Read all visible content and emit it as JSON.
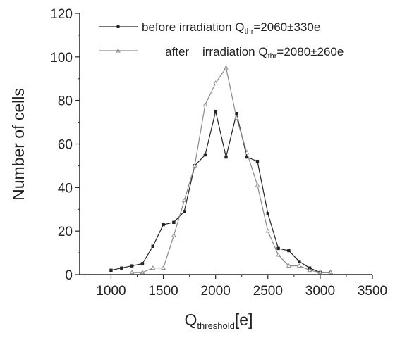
{
  "chart_data": {
    "type": "line",
    "title": "",
    "xlabel": {
      "main": "Q",
      "sub": "threshold",
      "unit": "[e]"
    },
    "ylabel": "Number of cells",
    "xlim": [
      700,
      3500
    ],
    "ylim": [
      0,
      120
    ],
    "xticks": [
      1000,
      1500,
      2000,
      2500,
      3000,
      3500
    ],
    "yticks": [
      0,
      20,
      40,
      60,
      80,
      100,
      120
    ],
    "grid": false,
    "legend_position": "top-right",
    "series": [
      {
        "name": "before irradiation",
        "legend": {
          "prefix": "before irradiation Q",
          "sub": "thr",
          "suffix": "=2060±330e"
        },
        "color": "#222222",
        "marker": "filled-square",
        "x": [
          1000,
          1100,
          1200,
          1300,
          1400,
          1500,
          1600,
          1700,
          1800,
          1900,
          2000,
          2100,
          2200,
          2300,
          2400,
          2500,
          2600,
          2700,
          2800,
          2900,
          3000,
          3100
        ],
        "y": [
          2,
          3,
          4,
          5,
          13,
          23,
          24,
          29,
          50,
          55,
          75,
          54,
          74,
          54,
          52,
          28,
          12,
          11,
          6,
          3,
          1,
          1
        ]
      },
      {
        "name": "after irradiation",
        "legend": {
          "prefix": "after    irradiation Q",
          "sub": "thr",
          "suffix": "=2080±260e"
        },
        "color": "#8a8a8a",
        "marker": "open-triangle",
        "x": [
          1200,
          1300,
          1400,
          1500,
          1600,
          1700,
          1800,
          1900,
          2000,
          2100,
          2200,
          2300,
          2400,
          2500,
          2600,
          2700,
          2800,
          2900,
          3000,
          3100
        ],
        "y": [
          1,
          1,
          3,
          3,
          18,
          34,
          50,
          78,
          88,
          95,
          72,
          56,
          41,
          20,
          9,
          4,
          4,
          2,
          1,
          1
        ]
      }
    ]
  }
}
